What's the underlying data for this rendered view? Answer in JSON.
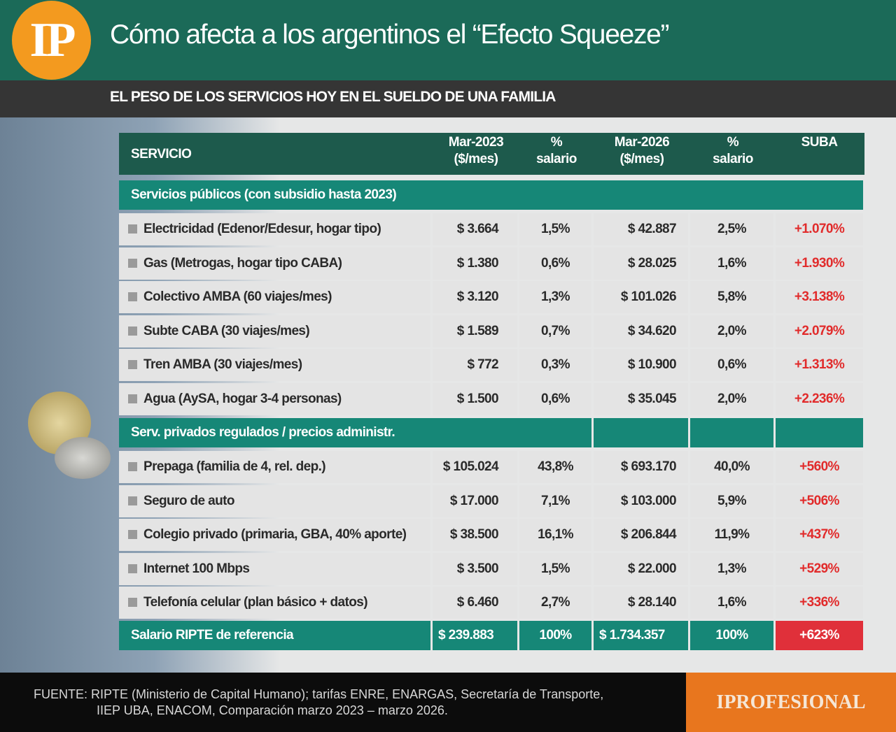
{
  "header": {
    "logo": "IP",
    "title": "Cómo afecta a los argentinos el “Efecto Squeeze”",
    "subtitle": "EL PESO DE LOS SERVICIOS HOY EN EL SUELDO DE UNA FAMILIA"
  },
  "table": {
    "columns": [
      [
        "SERVICIO"
      ],
      [
        "Mar-2023",
        "($/mes)"
      ],
      [
        "%",
        "salario"
      ],
      [
        "Mar-2026",
        "($/mes)"
      ],
      [
        "%",
        "salario"
      ],
      [
        "SUBA"
      ]
    ],
    "sections": [
      {
        "title": "Servicios públicos (con subsidio hasta 2023)",
        "rows": [
          [
            "Electricidad (Edenor/Edesur, hogar tipo)",
            "$ 3.664",
            "1,5%",
            "$ 42.887",
            "2,5%",
            "+1.070%"
          ],
          [
            "Gas (Metrogas, hogar tipo CABA)",
            "$ 1.380",
            "0,6%",
            "$ 28.025",
            "1,6%",
            "+1.930%"
          ],
          [
            "Colectivo AMBA (60 viajes/mes)",
            "$ 3.120",
            "1,3%",
            "$ 101.026",
            "5,8%",
            "+3.138%"
          ],
          [
            "Subte CABA (30 viajes/mes)",
            "$ 1.589",
            "0,7%",
            "$ 34.620",
            "2,0%",
            "+2.079%"
          ],
          [
            "Tren AMBA (30 viajes/mes)",
            "$ 772",
            "0,3%",
            "$ 10.900",
            "0,6%",
            "+1.313%"
          ],
          [
            "Agua (AySA, hogar 3-4 personas)",
            "$ 1.500",
            "0,6%",
            "$ 35.045",
            "2,0%",
            "+2.236%"
          ]
        ]
      },
      {
        "title": "Serv. privados regulados / precios administr.",
        "rows": [
          [
            "Prepaga (familia de 4, rel. dep.)",
            "$ 105.024",
            "43,8%",
            "$ 693.170",
            "40,0%",
            "+560%"
          ],
          [
            "Seguro de auto",
            "$ 17.000",
            "7,1%",
            "$ 103.000",
            "5,9%",
            "+506%"
          ],
          [
            "Colegio privado (primaria, GBA, 40% aporte)",
            "$ 38.500",
            "16,1%",
            "$ 206.844",
            "11,9%",
            "+437%"
          ],
          [
            "Internet 100 Mbps",
            "$ 3.500",
            "1,5%",
            "$ 22.000",
            "1,3%",
            "+529%"
          ],
          [
            "Telefonía celular (plan básico + datos)",
            "$ 6.460",
            "2,7%",
            "$ 28.140",
            "1,6%",
            "+336%"
          ]
        ]
      }
    ],
    "total": [
      "Salario RIPTE de referencia",
      "$ 239.883",
      "100%",
      "$ 1.734.357",
      "100%",
      "+623%"
    ]
  },
  "footer": {
    "source": [
      "FUENTE: RIPTE (Ministerio de Capital Humano); tarifas ENRE, ENARGAS, Secretaría de Transporte,",
      "IIEP UBA, ENACOM,  Comparación marzo 2023 – marzo 2026."
    ],
    "brand": "IPROFESIONAL"
  }
}
